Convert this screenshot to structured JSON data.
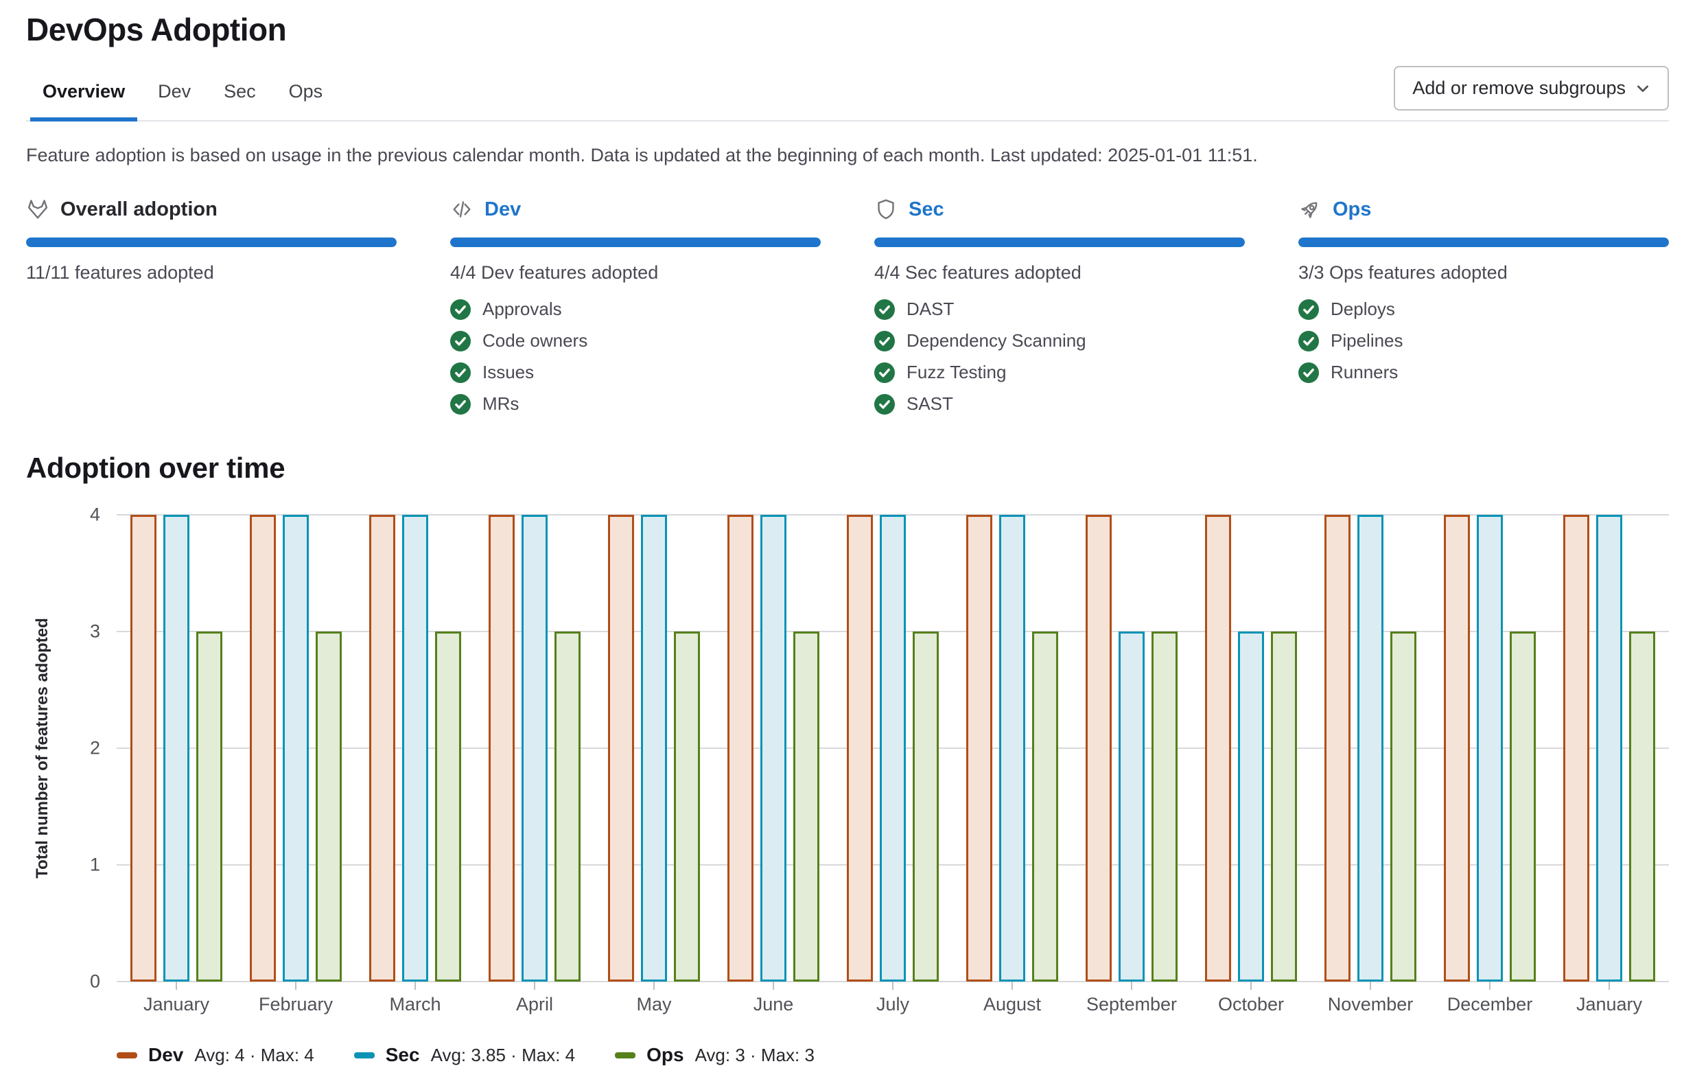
{
  "page": {
    "title": "DevOps Adoption"
  },
  "tabs": [
    {
      "label": "Overview",
      "active": true
    },
    {
      "label": "Dev",
      "active": false
    },
    {
      "label": "Sec",
      "active": false
    },
    {
      "label": "Ops",
      "active": false
    }
  ],
  "toolbar": {
    "subgroups_button": "Add or remove subgroups"
  },
  "info_text": "Feature adoption is based on usage in the previous calendar month. Data is updated at the beginning of each month. Last updated: 2025-01-01 11:51.",
  "colors": {
    "link_blue": "#1f75cb",
    "progress_blue": "#1f75cb",
    "check_green": "#217645",
    "icon_gray": "#737278",
    "grid_gray": "#d9d8dc"
  },
  "cards": [
    {
      "icon": "tanuki-icon",
      "title": "Overall adoption",
      "link": false,
      "progress": 100,
      "summary": "11/11 features adopted",
      "items": []
    },
    {
      "icon": "code-icon",
      "title": "Dev",
      "link": true,
      "progress": 100,
      "summary": "4/4 Dev features adopted",
      "items": [
        "Approvals",
        "Code owners",
        "Issues",
        "MRs"
      ]
    },
    {
      "icon": "shield-icon",
      "title": "Sec",
      "link": true,
      "progress": 100,
      "summary": "4/4 Sec features adopted",
      "items": [
        "DAST",
        "Dependency Scanning",
        "Fuzz Testing",
        "SAST"
      ]
    },
    {
      "icon": "rocket-icon",
      "title": "Ops",
      "link": true,
      "progress": 100,
      "summary": "3/3 Ops features adopted",
      "items": [
        "Deploys",
        "Pipelines",
        "Runners"
      ]
    }
  ],
  "section": {
    "heading": "Adoption over time"
  },
  "chart_data": {
    "type": "bar",
    "title": "Adoption over time",
    "categories": [
      "January",
      "February",
      "March",
      "April",
      "May",
      "June",
      "July",
      "August",
      "September",
      "October",
      "November",
      "December",
      "January"
    ],
    "series": [
      {
        "name": "Dev",
        "values": [
          4,
          4,
          4,
          4,
          4,
          4,
          4,
          4,
          4,
          4,
          4,
          4,
          4
        ],
        "stroke": "#b14e18",
        "fill": "#f5e3d8",
        "legend": "Avg: 4 · Max: 4"
      },
      {
        "name": "Sec",
        "values": [
          4,
          4,
          4,
          4,
          4,
          4,
          4,
          4,
          3,
          3,
          4,
          4,
          4
        ],
        "stroke": "#0a93b5",
        "fill": "#dbedf3",
        "legend": "Avg: 3.85 · Max: 4"
      },
      {
        "name": "Ops",
        "values": [
          3,
          3,
          3,
          3,
          3,
          3,
          3,
          3,
          3,
          3,
          3,
          3,
          3
        ],
        "stroke": "#56801b",
        "fill": "#e3ecd7",
        "legend": "Avg: 3 · Max: 3"
      }
    ],
    "xlabel": "",
    "ylabel": "Total number of features adopted",
    "yticks": [
      0,
      1,
      2,
      3,
      4
    ],
    "ylim": [
      0,
      4
    ],
    "grid": true,
    "legend_position": "bottom-left"
  }
}
